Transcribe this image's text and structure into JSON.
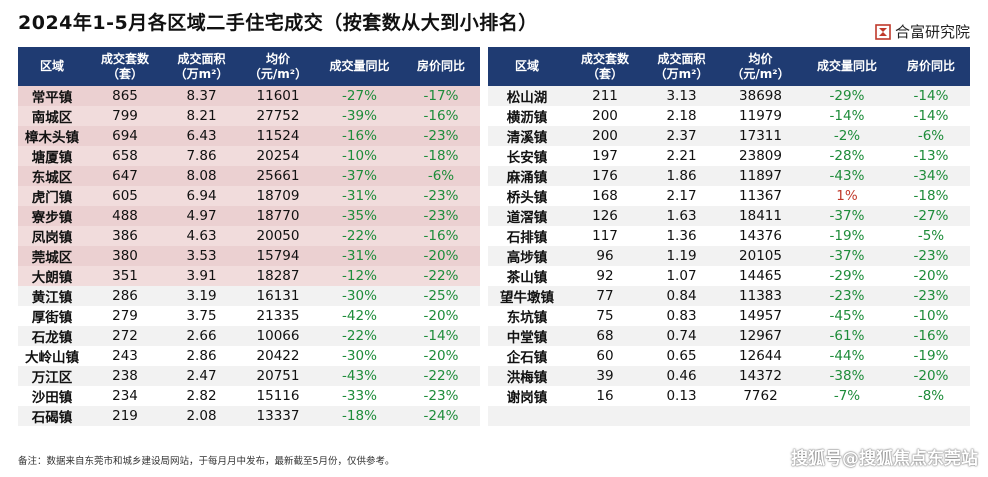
{
  "title": "2024年1-5月各区域二手住宅成交（按套数从大到小排名）",
  "brand": {
    "name": "合富研究院",
    "logo_icon": "hefu-logo-icon",
    "logo_color": "#c0392b"
  },
  "colors": {
    "header_bg": "#1f3b72",
    "highlight_bg": "#f1dcdc",
    "negative": "#1e8c3a",
    "positive": "#c0392b"
  },
  "headers": {
    "region": "区域",
    "units": "成交套数\n（套）",
    "area": "成交面积\n（万m²）",
    "price": "均价\n（元/m²）",
    "volume_yoy": "成交量同比",
    "price_yoy": "房价同比"
  },
  "left_rows": [
    {
      "region": "常平镇",
      "units": "865",
      "area": "8.37",
      "price": "11601",
      "volume_yoy": "-27%",
      "price_yoy": "-17%"
    },
    {
      "region": "南城区",
      "units": "799",
      "area": "8.21",
      "price": "27752",
      "volume_yoy": "-39%",
      "price_yoy": "-16%"
    },
    {
      "region": "樟木头镇",
      "units": "694",
      "area": "6.43",
      "price": "11524",
      "volume_yoy": "-16%",
      "price_yoy": "-23%"
    },
    {
      "region": "塘厦镇",
      "units": "658",
      "area": "7.86",
      "price": "20254",
      "volume_yoy": "-10%",
      "price_yoy": "-18%"
    },
    {
      "region": "东城区",
      "units": "647",
      "area": "8.08",
      "price": "25661",
      "volume_yoy": "-37%",
      "price_yoy": "-6%"
    },
    {
      "region": "虎门镇",
      "units": "605",
      "area": "6.94",
      "price": "18709",
      "volume_yoy": "-31%",
      "price_yoy": "-23%"
    },
    {
      "region": "寮步镇",
      "units": "488",
      "area": "4.97",
      "price": "18770",
      "volume_yoy": "-35%",
      "price_yoy": "-23%"
    },
    {
      "region": "凤岗镇",
      "units": "386",
      "area": "4.63",
      "price": "20050",
      "volume_yoy": "-22%",
      "price_yoy": "-16%"
    },
    {
      "region": "莞城区",
      "units": "380",
      "area": "3.53",
      "price": "15794",
      "volume_yoy": "-31%",
      "price_yoy": "-20%"
    },
    {
      "region": "大朗镇",
      "units": "351",
      "area": "3.91",
      "price": "18287",
      "volume_yoy": "-12%",
      "price_yoy": "-22%"
    },
    {
      "region": "黄江镇",
      "units": "286",
      "area": "3.19",
      "price": "16131",
      "volume_yoy": "-30%",
      "price_yoy": "-25%"
    },
    {
      "region": "厚街镇",
      "units": "279",
      "area": "3.75",
      "price": "21335",
      "volume_yoy": "-42%",
      "price_yoy": "-20%"
    },
    {
      "region": "石龙镇",
      "units": "272",
      "area": "2.66",
      "price": "10066",
      "volume_yoy": "-22%",
      "price_yoy": "-14%"
    },
    {
      "region": "大岭山镇",
      "units": "243",
      "area": "2.86",
      "price": "20422",
      "volume_yoy": "-30%",
      "price_yoy": "-20%"
    },
    {
      "region": "万江区",
      "units": "238",
      "area": "2.47",
      "price": "20751",
      "volume_yoy": "-43%",
      "price_yoy": "-22%"
    },
    {
      "region": "沙田镇",
      "units": "234",
      "area": "2.82",
      "price": "15116",
      "volume_yoy": "-33%",
      "price_yoy": "-23%"
    },
    {
      "region": "石碣镇",
      "units": "219",
      "area": "2.08",
      "price": "13337",
      "volume_yoy": "-18%",
      "price_yoy": "-24%"
    }
  ],
  "right_rows": [
    {
      "region": "松山湖",
      "units": "211",
      "area": "3.13",
      "price": "38698",
      "volume_yoy": "-29%",
      "price_yoy": "-14%"
    },
    {
      "region": "横沥镇",
      "units": "200",
      "area": "2.18",
      "price": "11979",
      "volume_yoy": "-14%",
      "price_yoy": "-14%"
    },
    {
      "region": "清溪镇",
      "units": "200",
      "area": "2.37",
      "price": "17311",
      "volume_yoy": "-2%",
      "price_yoy": "-6%"
    },
    {
      "region": "长安镇",
      "units": "197",
      "area": "2.21",
      "price": "23809",
      "volume_yoy": "-28%",
      "price_yoy": "-13%"
    },
    {
      "region": "麻涌镇",
      "units": "176",
      "area": "1.86",
      "price": "11897",
      "volume_yoy": "-43%",
      "price_yoy": "-34%"
    },
    {
      "region": "桥头镇",
      "units": "168",
      "area": "2.17",
      "price": "11367",
      "volume_yoy": "1%",
      "price_yoy": "-18%"
    },
    {
      "region": "道滘镇",
      "units": "126",
      "area": "1.63",
      "price": "18411",
      "volume_yoy": "-37%",
      "price_yoy": "-27%"
    },
    {
      "region": "石排镇",
      "units": "117",
      "area": "1.36",
      "price": "14376",
      "volume_yoy": "-19%",
      "price_yoy": "-5%"
    },
    {
      "region": "高埗镇",
      "units": "96",
      "area": "1.19",
      "price": "20105",
      "volume_yoy": "-37%",
      "price_yoy": "-23%"
    },
    {
      "region": "茶山镇",
      "units": "92",
      "area": "1.07",
      "price": "14465",
      "volume_yoy": "-29%",
      "price_yoy": "-20%"
    },
    {
      "region": "望牛墩镇",
      "units": "77",
      "area": "0.84",
      "price": "11383",
      "volume_yoy": "-23%",
      "price_yoy": "-23%"
    },
    {
      "region": "东坑镇",
      "units": "75",
      "area": "0.83",
      "price": "14957",
      "volume_yoy": "-45%",
      "price_yoy": "-10%"
    },
    {
      "region": "中堂镇",
      "units": "68",
      "area": "0.74",
      "price": "12967",
      "volume_yoy": "-61%",
      "price_yoy": "-16%"
    },
    {
      "region": "企石镇",
      "units": "60",
      "area": "0.65",
      "price": "12644",
      "volume_yoy": "-44%",
      "price_yoy": "-19%"
    },
    {
      "region": "洪梅镇",
      "units": "39",
      "area": "0.46",
      "price": "14372",
      "volume_yoy": "-38%",
      "price_yoy": "-20%"
    },
    {
      "region": "谢岗镇",
      "units": "16",
      "area": "0.13",
      "price": "7762",
      "volume_yoy": "-7%",
      "price_yoy": "-8%"
    }
  ],
  "note": "备注：数据来自东莞市和城乡建设局网站，于每月月中发布，最新截至5月份，仅供参考。",
  "watermark": "搜狐号@搜狐焦点东莞站"
}
